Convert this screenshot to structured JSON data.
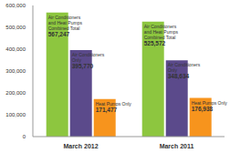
{
  "chart_data": {
    "type": "bar",
    "categories": [
      "March 2012",
      "March 2011"
    ],
    "series": [
      {
        "name": "Air Conditioners and Heat Pumps Combined Total",
        "color": "#8dc63f",
        "values": [
          567247,
          525572
        ],
        "value_labels": [
          "567,247",
          "525,572"
        ]
      },
      {
        "name": "Air Conditioners Only",
        "color": "#5b4a8b",
        "values": [
          395770,
          348634
        ],
        "value_labels": [
          "395,770",
          "348,634"
        ]
      },
      {
        "name": "Heat Pumps Only",
        "color": "#f7941d",
        "values": [
          171477,
          176938
        ],
        "value_labels": [
          "171,477",
          "176,938"
        ]
      }
    ],
    "ylim": [
      0,
      600000
    ],
    "yticks": [
      0,
      {
        "value": 100000,
        "label": "100,000"
      },
      {
        "value": 200000,
        "label": "200,000"
      },
      {
        "value": 300000,
        "label": "300,000"
      },
      {
        "value": 400000,
        "label": "400,000"
      },
      {
        "value": 500000,
        "label": "500,000"
      },
      {
        "value": 600000,
        "label": "600,000"
      }
    ],
    "grid": false,
    "data_labels": true
  }
}
